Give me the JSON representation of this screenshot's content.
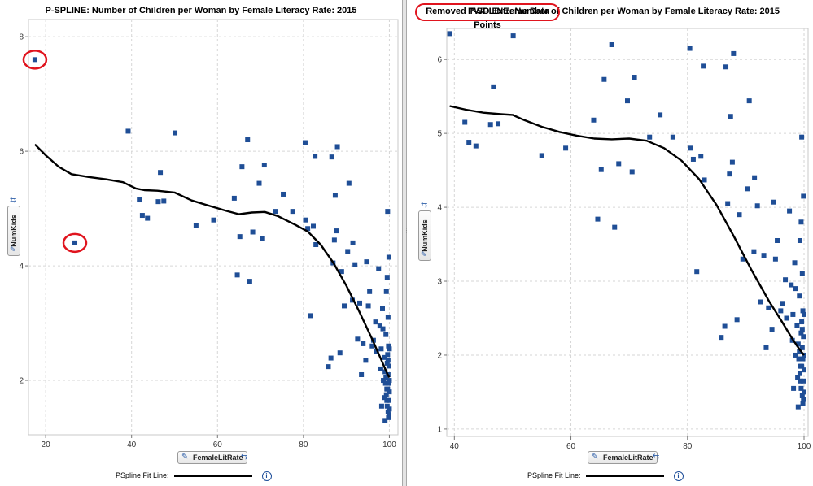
{
  "chart_data": [
    {
      "type": "scatter",
      "title": "P-SPLINE:  Number of Children per Woman by Female Literacy Rate:  2015",
      "xlabel": "FemaleLitRate",
      "ylabel": "NumKids",
      "xlim": [
        16,
        102
      ],
      "ylim": [
        1.05,
        8.3
      ],
      "xticks": [
        20,
        40,
        60,
        80,
        100
      ],
      "yticks": [
        2,
        4,
        6,
        8
      ],
      "grid": true,
      "legend": {
        "label": "PSpline Fit Line:",
        "placement": "bottom-center"
      },
      "marker_color": "#1f4e96",
      "points": [
        [
          17.5,
          7.6
        ],
        [
          26.8,
          4.4
        ],
        [
          39.2,
          6.35
        ],
        [
          50.1,
          6.32
        ],
        [
          41.8,
          5.15
        ],
        [
          42.5,
          4.88
        ],
        [
          43.7,
          4.83
        ],
        [
          46.2,
          5.12
        ],
        [
          46.7,
          5.63
        ],
        [
          47.5,
          5.13
        ],
        [
          55.0,
          4.7
        ],
        [
          59.1,
          4.8
        ],
        [
          63.9,
          5.18
        ],
        [
          64.6,
          3.84
        ],
        [
          65.2,
          4.51
        ],
        [
          65.7,
          5.73
        ],
        [
          67.0,
          6.2
        ],
        [
          67.5,
          3.73
        ],
        [
          68.2,
          4.59
        ],
        [
          69.7,
          5.44
        ],
        [
          70.5,
          4.48
        ],
        [
          70.9,
          5.76
        ],
        [
          73.5,
          4.95
        ],
        [
          75.3,
          5.25
        ],
        [
          77.5,
          4.95
        ],
        [
          80.4,
          6.15
        ],
        [
          80.5,
          4.8
        ],
        [
          81.0,
          4.65
        ],
        [
          81.6,
          3.13
        ],
        [
          82.3,
          4.69
        ],
        [
          82.9,
          4.37
        ],
        [
          82.7,
          5.91
        ],
        [
          85.8,
          2.24
        ],
        [
          86.4,
          2.39
        ],
        [
          86.6,
          5.9
        ],
        [
          87.2,
          4.45
        ],
        [
          86.9,
          4.05
        ],
        [
          87.4,
          5.23
        ],
        [
          87.7,
          4.61
        ],
        [
          87.9,
          6.08
        ],
        [
          88.5,
          2.48
        ],
        [
          88.9,
          3.9
        ],
        [
          89.5,
          3.3
        ],
        [
          90.3,
          4.25
        ],
        [
          90.6,
          5.44
        ],
        [
          91.4,
          3.4
        ],
        [
          91.5,
          4.4
        ],
        [
          92.0,
          4.02
        ],
        [
          92.6,
          2.72
        ],
        [
          93.5,
          2.1
        ],
        [
          93.1,
          3.35
        ],
        [
          93.9,
          2.64
        ],
        [
          94.5,
          2.35
        ],
        [
          94.7,
          4.07
        ],
        [
          95.1,
          3.3
        ],
        [
          95.4,
          3.55
        ],
        [
          96.0,
          2.6
        ],
        [
          96.3,
          2.7
        ],
        [
          96.8,
          3.02
        ],
        [
          97.0,
          2.5
        ],
        [
          97.5,
          3.95
        ],
        [
          97.8,
          2.95
        ],
        [
          98.1,
          2.55
        ],
        [
          98.4,
          3.25
        ],
        [
          98.6,
          2.0
        ],
        [
          98.8,
          2.4
        ],
        [
          99.0,
          2.15
        ],
        [
          99.1,
          1.95
        ],
        [
          99.2,
          2.8
        ],
        [
          99.3,
          3.55
        ],
        [
          99.3,
          1.75
        ],
        [
          99.4,
          1.65
        ],
        [
          99.5,
          2.3
        ],
        [
          99.5,
          1.55
        ],
        [
          99.6,
          2.45
        ],
        [
          99.6,
          1.85
        ],
        [
          99.7,
          1.45
        ],
        [
          99.7,
          2.1
        ],
        [
          99.7,
          3.1
        ],
        [
          99.8,
          1.95
        ],
        [
          99.8,
          1.35
        ],
        [
          99.8,
          2.6
        ],
        [
          99.9,
          1.65
        ],
        [
          99.9,
          2.25
        ],
        [
          99.9,
          4.15
        ],
        [
          100.0,
          1.5
        ],
        [
          100.0,
          2.0
        ],
        [
          100.0,
          1.8
        ],
        [
          100.0,
          2.55
        ],
        [
          99.6,
          4.95
        ],
        [
          98.2,
          1.55
        ],
        [
          98.5,
          2.9
        ],
        [
          99.0,
          1.3
        ],
        [
          99.4,
          1.85
        ],
        [
          99.2,
          2.05
        ],
        [
          98.9,
          1.7
        ],
        [
          99.7,
          2.35
        ],
        [
          99.9,
          1.4
        ],
        [
          99.5,
          3.8
        ],
        [
          98.0,
          2.2
        ]
      ],
      "fit_line": [
        [
          17.5,
          6.12
        ],
        [
          20,
          5.93
        ],
        [
          23,
          5.73
        ],
        [
          26,
          5.6
        ],
        [
          30,
          5.55
        ],
        [
          34,
          5.51
        ],
        [
          38,
          5.46
        ],
        [
          41,
          5.35
        ],
        [
          43,
          5.32
        ],
        [
          46,
          5.31
        ],
        [
          50,
          5.28
        ],
        [
          54,
          5.14
        ],
        [
          58,
          5.05
        ],
        [
          62,
          4.96
        ],
        [
          65,
          4.9
        ],
        [
          68,
          4.93
        ],
        [
          71,
          4.94
        ],
        [
          74,
          4.87
        ],
        [
          78,
          4.72
        ],
        [
          81,
          4.6
        ],
        [
          84,
          4.37
        ],
        [
          87,
          4.05
        ],
        [
          90,
          3.65
        ],
        [
          93,
          3.2
        ],
        [
          96,
          2.72
        ],
        [
          98,
          2.38
        ],
        [
          99.5,
          2.12
        ],
        [
          100,
          2.05
        ]
      ]
    },
    {
      "type": "scatter",
      "title": "P-SPLINE:  Number of Children per Woman by Female Literacy Rate:  2015",
      "annotation": "Removed TWO Extreme Data Points",
      "xlabel": "FemaleLitRate",
      "ylabel": "NumKids",
      "xlim": [
        38.7,
        100.7
      ],
      "ylim": [
        0.9,
        6.42
      ],
      "xticks": [
        40,
        60,
        80,
        100
      ],
      "yticks": [
        1,
        2,
        3,
        4,
        5,
        6
      ],
      "grid": true,
      "legend": {
        "label": "PSpline Fit Line:",
        "placement": "bottom-center"
      },
      "marker_color": "#1f4e96",
      "points": [
        [
          39.2,
          6.35
        ],
        [
          50.1,
          6.32
        ],
        [
          41.8,
          5.15
        ],
        [
          42.5,
          4.88
        ],
        [
          43.7,
          4.83
        ],
        [
          46.2,
          5.12
        ],
        [
          46.7,
          5.63
        ],
        [
          47.5,
          5.13
        ],
        [
          55.0,
          4.7
        ],
        [
          59.1,
          4.8
        ],
        [
          63.9,
          5.18
        ],
        [
          64.6,
          3.84
        ],
        [
          65.2,
          4.51
        ],
        [
          65.7,
          5.73
        ],
        [
          67.0,
          6.2
        ],
        [
          67.5,
          3.73
        ],
        [
          68.2,
          4.59
        ],
        [
          69.7,
          5.44
        ],
        [
          70.5,
          4.48
        ],
        [
          70.9,
          5.76
        ],
        [
          73.5,
          4.95
        ],
        [
          75.3,
          5.25
        ],
        [
          77.5,
          4.95
        ],
        [
          80.4,
          6.15
        ],
        [
          80.5,
          4.8
        ],
        [
          81.0,
          4.65
        ],
        [
          81.6,
          3.13
        ],
        [
          82.3,
          4.69
        ],
        [
          82.9,
          4.37
        ],
        [
          82.7,
          5.91
        ],
        [
          85.8,
          2.24
        ],
        [
          86.4,
          2.39
        ],
        [
          86.6,
          5.9
        ],
        [
          87.2,
          4.45
        ],
        [
          86.9,
          4.05
        ],
        [
          87.4,
          5.23
        ],
        [
          87.7,
          4.61
        ],
        [
          87.9,
          6.08
        ],
        [
          88.5,
          2.48
        ],
        [
          88.9,
          3.9
        ],
        [
          89.5,
          3.3
        ],
        [
          90.3,
          4.25
        ],
        [
          90.6,
          5.44
        ],
        [
          91.4,
          3.4
        ],
        [
          91.5,
          4.4
        ],
        [
          92.0,
          4.02
        ],
        [
          92.6,
          2.72
        ],
        [
          93.5,
          2.1
        ],
        [
          93.1,
          3.35
        ],
        [
          93.9,
          2.64
        ],
        [
          94.5,
          2.35
        ],
        [
          94.7,
          4.07
        ],
        [
          95.1,
          3.3
        ],
        [
          95.4,
          3.55
        ],
        [
          96.0,
          2.6
        ],
        [
          96.3,
          2.7
        ],
        [
          96.8,
          3.02
        ],
        [
          97.0,
          2.5
        ],
        [
          97.5,
          3.95
        ],
        [
          97.8,
          2.95
        ],
        [
          98.1,
          2.55
        ],
        [
          98.4,
          3.25
        ],
        [
          98.6,
          2.0
        ],
        [
          98.8,
          2.4
        ],
        [
          99.0,
          2.15
        ],
        [
          99.1,
          1.95
        ],
        [
          99.2,
          2.8
        ],
        [
          99.3,
          3.55
        ],
        [
          99.3,
          1.75
        ],
        [
          99.4,
          1.65
        ],
        [
          99.5,
          2.3
        ],
        [
          99.5,
          1.55
        ],
        [
          99.6,
          2.45
        ],
        [
          99.6,
          1.85
        ],
        [
          99.7,
          1.45
        ],
        [
          99.7,
          2.1
        ],
        [
          99.7,
          3.1
        ],
        [
          99.8,
          1.95
        ],
        [
          99.8,
          1.35
        ],
        [
          99.8,
          2.6
        ],
        [
          99.9,
          1.65
        ],
        [
          99.9,
          2.25
        ],
        [
          99.9,
          4.15
        ],
        [
          100.0,
          1.5
        ],
        [
          100.0,
          2.0
        ],
        [
          100.0,
          1.8
        ],
        [
          100.0,
          2.55
        ],
        [
          99.6,
          4.95
        ],
        [
          98.2,
          1.55
        ],
        [
          98.5,
          2.9
        ],
        [
          99.0,
          1.3
        ],
        [
          99.4,
          1.85
        ],
        [
          99.2,
          2.05
        ],
        [
          98.9,
          1.7
        ],
        [
          99.7,
          2.35
        ],
        [
          99.9,
          1.4
        ],
        [
          99.5,
          3.8
        ],
        [
          98.0,
          2.2
        ]
      ],
      "fit_line": [
        [
          39.2,
          5.37
        ],
        [
          42,
          5.32
        ],
        [
          45,
          5.28
        ],
        [
          48,
          5.26
        ],
        [
          50,
          5.25
        ],
        [
          52,
          5.18
        ],
        [
          55,
          5.09
        ],
        [
          58,
          5.02
        ],
        [
          61,
          4.97
        ],
        [
          64,
          4.93
        ],
        [
          67,
          4.92
        ],
        [
          70,
          4.93
        ],
        [
          73,
          4.9
        ],
        [
          76,
          4.8
        ],
        [
          79,
          4.63
        ],
        [
          82,
          4.38
        ],
        [
          85,
          4.03
        ],
        [
          88,
          3.6
        ],
        [
          91,
          3.15
        ],
        [
          94,
          2.73
        ],
        [
          96,
          2.48
        ],
        [
          98,
          2.22
        ],
        [
          99.2,
          2.08
        ],
        [
          100,
          2.0
        ]
      ]
    }
  ]
}
